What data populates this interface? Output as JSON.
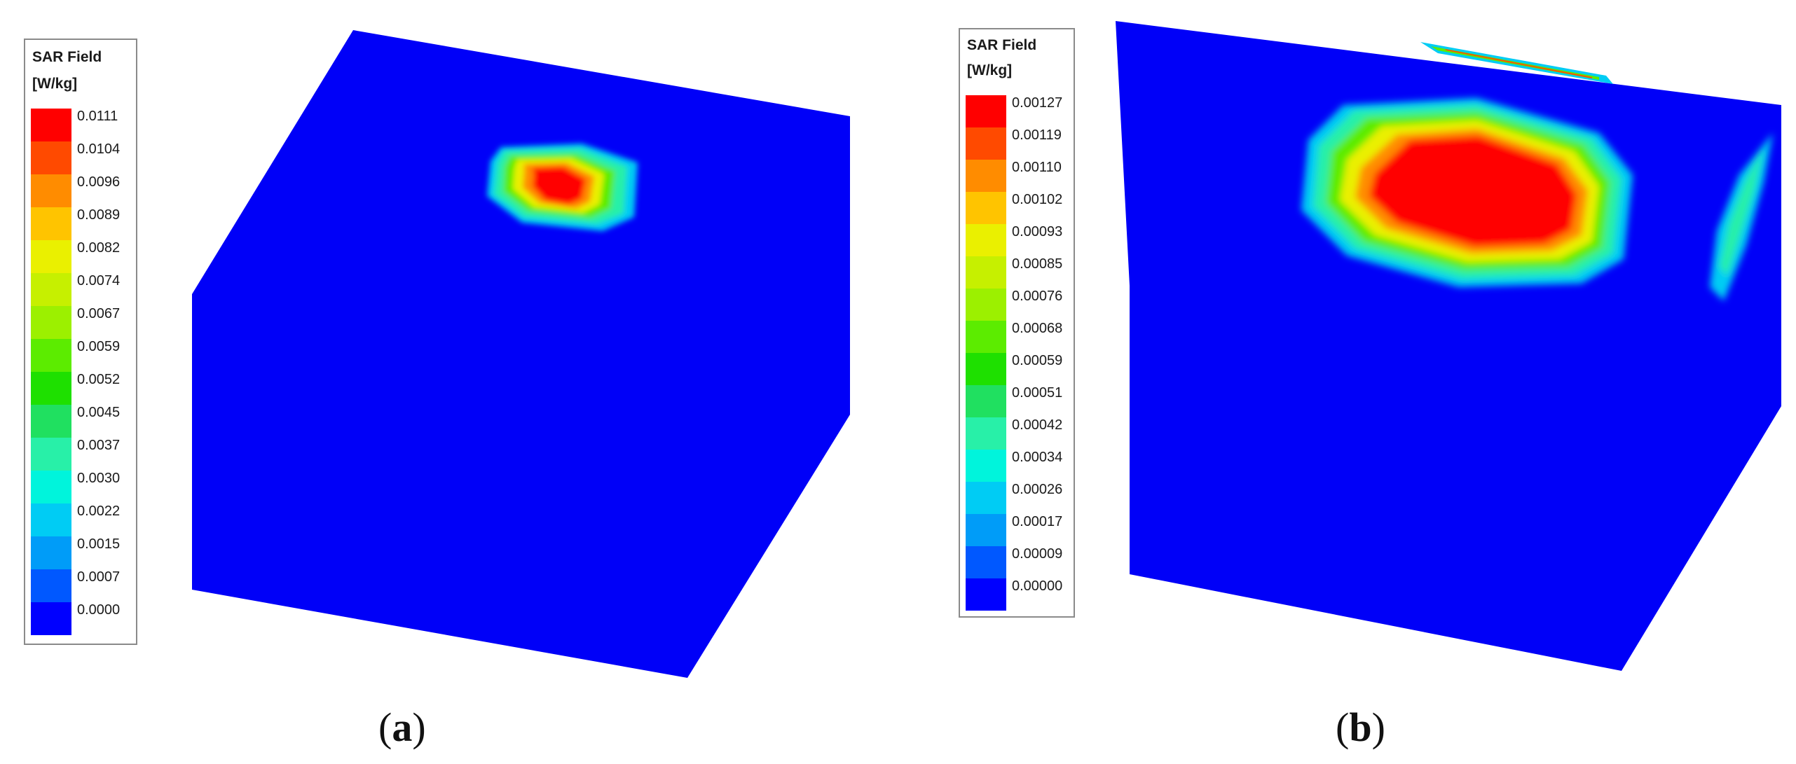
{
  "panels": [
    {
      "caption_open": "(",
      "caption_letter": "a",
      "caption_close": ")",
      "legend": {
        "title_line1": "SAR Field",
        "title_line2": "[W/kg]",
        "labels": [
          "0.0111",
          "0.0104",
          "0.0096",
          "0.0089",
          "0.0082",
          "0.0074",
          "0.0067",
          "0.0059",
          "0.0052",
          "0.0045",
          "0.0037",
          "0.0030",
          "0.0022",
          "0.0015",
          "0.0007",
          "0.0000"
        ],
        "colors": [
          "#ff0000",
          "#ff4a00",
          "#ff8c00",
          "#ffc400",
          "#eaf000",
          "#c6f000",
          "#9cf000",
          "#5cec00",
          "#1ee000",
          "#20e060",
          "#28f0a8",
          "#00f4dc",
          "#00ccf4",
          "#009cf8",
          "#0058ff",
          "#0000ff"
        ]
      }
    },
    {
      "caption_open": "(",
      "caption_letter": "b",
      "caption_close": ")",
      "legend": {
        "title_line1": "SAR Field",
        "title_line2": "[W/kg]",
        "labels": [
          "0.00127",
          "0.00119",
          "0.00110",
          "0.00102",
          "0.00093",
          "0.00085",
          "0.00076",
          "0.00068",
          "0.00059",
          "0.00051",
          "0.00042",
          "0.00034",
          "0.00026",
          "0.00017",
          "0.00009",
          "0.00000"
        ],
        "colors": [
          "#ff0000",
          "#ff4a00",
          "#ff8c00",
          "#ffc400",
          "#eaf000",
          "#c6f000",
          "#9cf000",
          "#5cec00",
          "#1ee000",
          "#20e060",
          "#28f0a8",
          "#00f4dc",
          "#00ccf4",
          "#009cf8",
          "#0058ff",
          "#0000ff"
        ]
      }
    }
  ]
}
